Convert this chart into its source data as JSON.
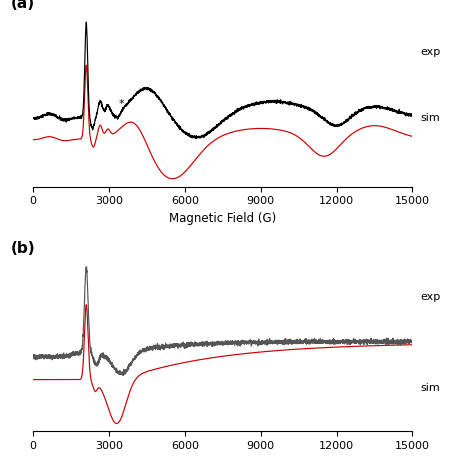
{
  "xlabel": "Magnetic Field (G)",
  "xlim": [
    0,
    15000
  ],
  "xticks": [
    0,
    3000,
    6000,
    9000,
    12000,
    15000
  ],
  "background_color": "#ffffff",
  "panel_a_label": "(a)",
  "panel_b_label": "(b)",
  "exp_label": "exp",
  "sim_label": "sim",
  "exp_color_a": "#000000",
  "sim_color_a": "#cc0000",
  "exp_color_b": "#555555",
  "sim_color_b": "#cc0000"
}
